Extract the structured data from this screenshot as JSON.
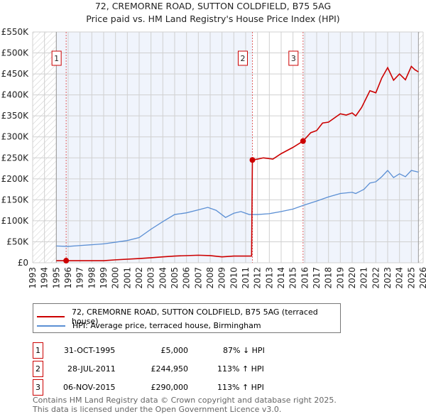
{
  "title": "72, CREMORNE ROAD, SUTTON COLDFIELD, B75 5AG",
  "subtitle": "Price paid vs. HM Land Registry's House Price Index (HPI)",
  "chart_data": {
    "type": "line",
    "xlim": [
      1993,
      2026
    ],
    "ylim": [
      0,
      550000
    ],
    "x_ticks": [
      "1993",
      "1994",
      "1995",
      "1996",
      "1997",
      "1998",
      "1999",
      "2000",
      "2001",
      "2002",
      "2003",
      "2004",
      "2005",
      "2006",
      "2007",
      "2008",
      "2009",
      "2010",
      "2011",
      "2012",
      "2013",
      "2014",
      "2015",
      "2016",
      "2017",
      "2018",
      "2019",
      "2020",
      "2021",
      "2022",
      "2023",
      "2024",
      "2025",
      "2026"
    ],
    "y_ticks": [
      {
        "v": 0,
        "l": "£0"
      },
      {
        "v": 50000,
        "l": "£50K"
      },
      {
        "v": 100000,
        "l": "£100K"
      },
      {
        "v": 150000,
        "l": "£150K"
      },
      {
        "v": 200000,
        "l": "£200K"
      },
      {
        "v": 250000,
        "l": "£250K"
      },
      {
        "v": 300000,
        "l": "£300K"
      },
      {
        "v": 350000,
        "l": "£350K"
      },
      {
        "v": 400000,
        "l": "£400K"
      },
      {
        "v": 450000,
        "l": "£450K"
      },
      {
        "v": 500000,
        "l": "£500K"
      },
      {
        "v": 550000,
        "l": "£550K"
      }
    ],
    "grid": true,
    "series": [
      {
        "name": "72, CREMORNE ROAD, SUTTON COLDFIELD, B75 5AG (terraced house)",
        "color": "#cc0000",
        "x": [
          1995,
          1999,
          2000,
          2002,
          2003,
          2004,
          2005,
          2007,
          2008,
          2009,
          2010,
          2011.5,
          2011.57,
          2012,
          2012.5,
          2013.3,
          2014,
          2015,
          2015.85,
          2016.5,
          2017,
          2017.5,
          2018,
          2019,
          2019.5,
          2020,
          2020.3,
          2020.8,
          2021.5,
          2022,
          2022.5,
          2023,
          2023.5,
          2024,
          2024.5,
          2025,
          2025.3,
          2025.6
        ],
        "y": [
          5000,
          5000,
          7000,
          10000,
          12000,
          14000,
          16000,
          18000,
          17000,
          14000,
          16000,
          16000,
          244950,
          247000,
          250000,
          247000,
          260000,
          275000,
          290000,
          310000,
          315000,
          333000,
          335000,
          355000,
          352000,
          357000,
          350000,
          370000,
          410000,
          405000,
          440000,
          465000,
          435000,
          450000,
          436000,
          468000,
          460000,
          455000
        ]
      },
      {
        "name": "HPI: Average price, terraced house, Birmingham",
        "color": "#5b8fd4",
        "x": [
          1995,
          1996,
          1997,
          1998,
          1999,
          2000,
          2001,
          2002,
          2003,
          2004,
          2005,
          2006,
          2007,
          2007.8,
          2008.5,
          2009.3,
          2010,
          2010.6,
          2011.3,
          2012,
          2013,
          2014,
          2015,
          2015.9,
          2017,
          2018,
          2019,
          2020,
          2020.3,
          2021,
          2021.5,
          2022,
          2022.5,
          2023,
          2023.5,
          2024,
          2024.5,
          2025,
          2025.6
        ],
        "y": [
          40000,
          39000,
          41000,
          43000,
          45000,
          49000,
          53000,
          60000,
          80000,
          98000,
          115000,
          119000,
          126000,
          132000,
          125000,
          108000,
          118000,
          122000,
          115000,
          115000,
          117000,
          122000,
          128000,
          137000,
          147000,
          157000,
          165000,
          168000,
          165000,
          175000,
          190000,
          193000,
          205000,
          220000,
          203000,
          212000,
          205000,
          220000,
          216000
        ]
      }
    ],
    "sales": [
      {
        "n": "1",
        "x": 1995.83,
        "y": 5000
      },
      {
        "n": "2",
        "x": 2011.57,
        "y": 244950
      },
      {
        "n": "3",
        "x": 2015.85,
        "y": 290000
      }
    ],
    "legend": "below"
  },
  "legend": {
    "property": "72, CREMORNE ROAD, SUTTON COLDFIELD, B75 5AG (terraced house)",
    "hpi": "HPI: Average price, terraced house, Birmingham"
  },
  "transactions": [
    {
      "n": "1",
      "date": "31-OCT-1995",
      "price": "£5,000",
      "hpi": "87% ↓ HPI"
    },
    {
      "n": "2",
      "date": "28-JUL-2011",
      "price": "£244,950",
      "hpi": "113% ↑ HPI"
    },
    {
      "n": "3",
      "date": "06-NOV-2015",
      "price": "£290,000",
      "hpi": "113% ↑ HPI"
    }
  ],
  "footer": {
    "line1": "Contains HM Land Registry data © Crown copyright and database right 2025.",
    "line2": "This data is licensed under the Open Government Licence v3.0."
  }
}
